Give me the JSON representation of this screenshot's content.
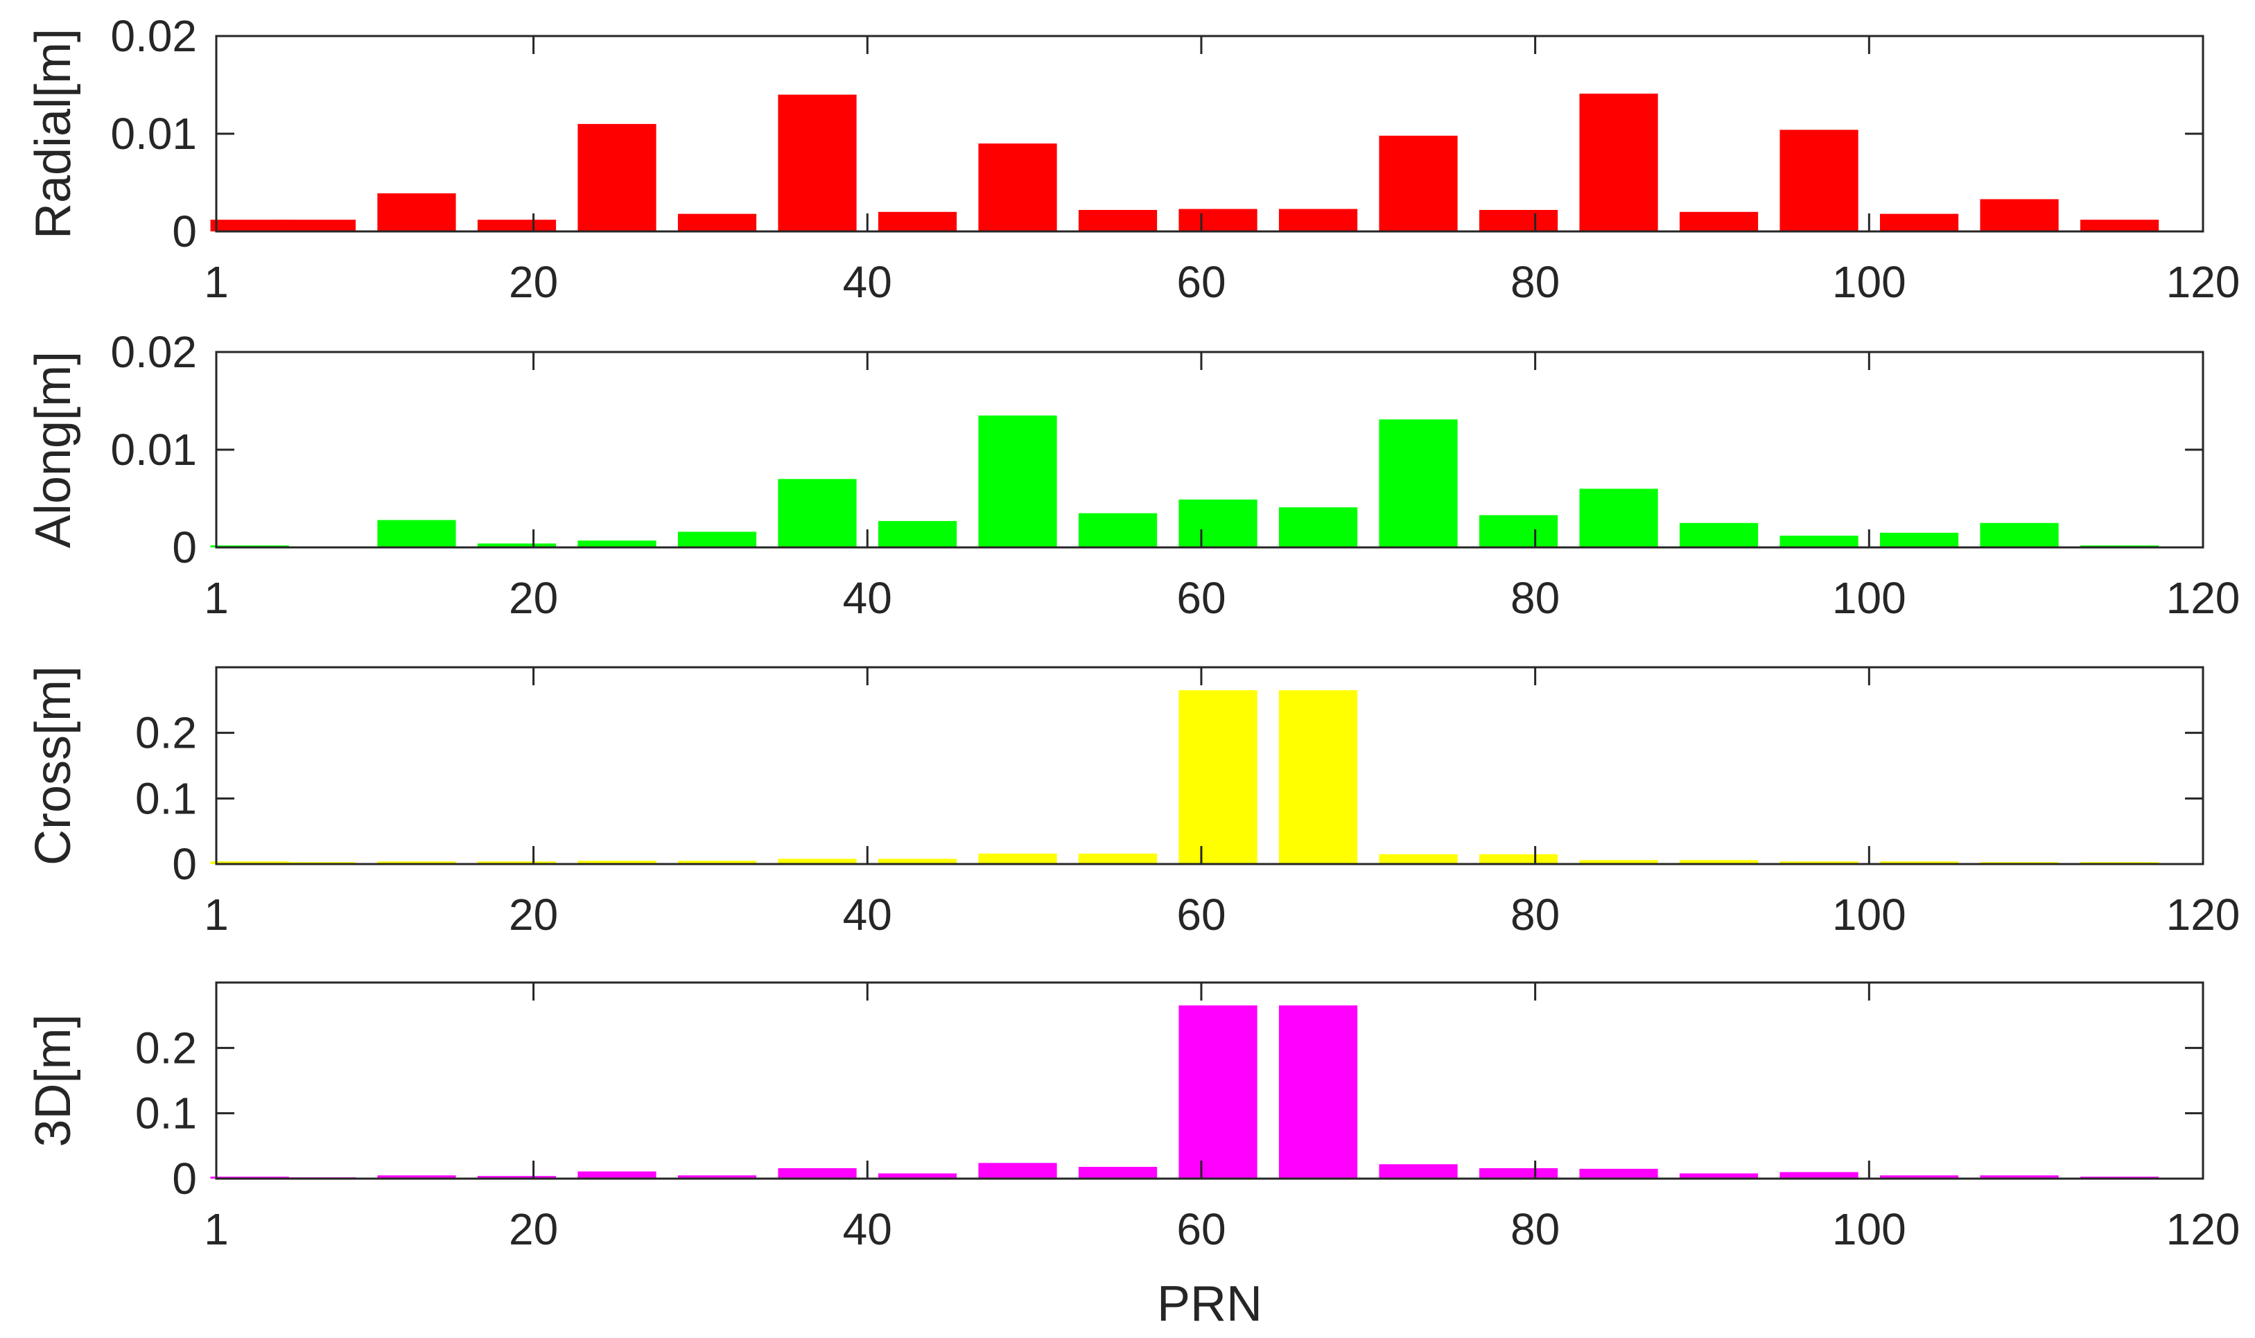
{
  "chart_data": [
    {
      "type": "bar",
      "ylabel": "Radial[m]",
      "xlabel": "",
      "color": "#ff0000",
      "xlim": [
        1,
        120
      ],
      "ylim": [
        0,
        0.02
      ],
      "xticks": [
        1,
        20,
        40,
        60,
        80,
        100,
        120
      ],
      "xtick_labels": [
        "1",
        "20",
        "40",
        "60",
        "80",
        "100",
        "120"
      ],
      "yticks": [
        0,
        0.01,
        0.02
      ],
      "ytick_labels": [
        "0",
        "0.01",
        "0.02"
      ],
      "x": [
        3,
        7,
        13,
        19,
        25,
        31,
        37,
        43,
        49,
        55,
        61,
        67,
        73,
        79,
        85,
        91,
        97,
        103,
        109,
        115
      ],
      "values": [
        0.0012,
        0.0012,
        0.0039,
        0.0012,
        0.011,
        0.0018,
        0.014,
        0.002,
        0.009,
        0.0022,
        0.0023,
        0.0023,
        0.0098,
        0.0022,
        0.0141,
        0.002,
        0.0104,
        0.0018,
        0.0033,
        0.0012
      ]
    },
    {
      "type": "bar",
      "ylabel": "Along[m]",
      "xlabel": "",
      "color": "#00ff00",
      "xlim": [
        1,
        120
      ],
      "ylim": [
        0,
        0.02
      ],
      "xticks": [
        1,
        20,
        40,
        60,
        80,
        100,
        120
      ],
      "xtick_labels": [
        "1",
        "20",
        "40",
        "60",
        "80",
        "100",
        "120"
      ],
      "yticks": [
        0,
        0.01,
        0.02
      ],
      "ytick_labels": [
        "0",
        "0.01",
        "0.02"
      ],
      "x": [
        3,
        7,
        13,
        19,
        25,
        31,
        37,
        43,
        49,
        55,
        61,
        67,
        73,
        79,
        85,
        91,
        97,
        103,
        109,
        115
      ],
      "values": [
        0.0002,
        0.0,
        0.0028,
        0.0004,
        0.0007,
        0.0016,
        0.007,
        0.0027,
        0.0135,
        0.0035,
        0.0049,
        0.0041,
        0.0131,
        0.0033,
        0.006,
        0.0025,
        0.0012,
        0.0015,
        0.0025,
        0.0002
      ]
    },
    {
      "type": "bar",
      "ylabel": "Cross[m]",
      "xlabel": "",
      "color": "#ffff00",
      "xlim": [
        1,
        120
      ],
      "ylim": [
        0,
        0.3
      ],
      "xticks": [
        1,
        20,
        40,
        60,
        80,
        100,
        120
      ],
      "xtick_labels": [
        "1",
        "20",
        "40",
        "60",
        "80",
        "100",
        "120"
      ],
      "yticks": [
        0,
        0.1,
        0.2
      ],
      "ytick_labels": [
        "0",
        "0.1",
        "0.2"
      ],
      "x": [
        3,
        7,
        13,
        19,
        25,
        31,
        37,
        43,
        49,
        55,
        61,
        67,
        73,
        79,
        85,
        91,
        97,
        103,
        109,
        115
      ],
      "values": [
        0.004,
        0.003,
        0.004,
        0.004,
        0.005,
        0.005,
        0.008,
        0.008,
        0.016,
        0.016,
        0.265,
        0.265,
        0.015,
        0.015,
        0.006,
        0.006,
        0.004,
        0.004,
        0.003,
        0.003
      ]
    },
    {
      "type": "bar",
      "ylabel": "3D[m]",
      "xlabel": "PRN",
      "color": "#ff00ff",
      "xlim": [
        1,
        120
      ],
      "ylim": [
        0,
        0.3
      ],
      "xticks": [
        1,
        20,
        40,
        60,
        80,
        100,
        120
      ],
      "xtick_labels": [
        "1",
        "20",
        "40",
        "60",
        "80",
        "100",
        "120"
      ],
      "yticks": [
        0,
        0.1,
        0.2
      ],
      "ytick_labels": [
        "0",
        "0.1",
        "0.2"
      ],
      "x": [
        3,
        7,
        13,
        19,
        25,
        31,
        37,
        43,
        49,
        55,
        61,
        67,
        73,
        79,
        85,
        91,
        97,
        103,
        109,
        115
      ],
      "values": [
        0.003,
        0.002,
        0.005,
        0.004,
        0.011,
        0.005,
        0.016,
        0.008,
        0.024,
        0.018,
        0.265,
        0.265,
        0.022,
        0.016,
        0.015,
        0.008,
        0.01,
        0.005,
        0.005,
        0.003
      ]
    }
  ]
}
